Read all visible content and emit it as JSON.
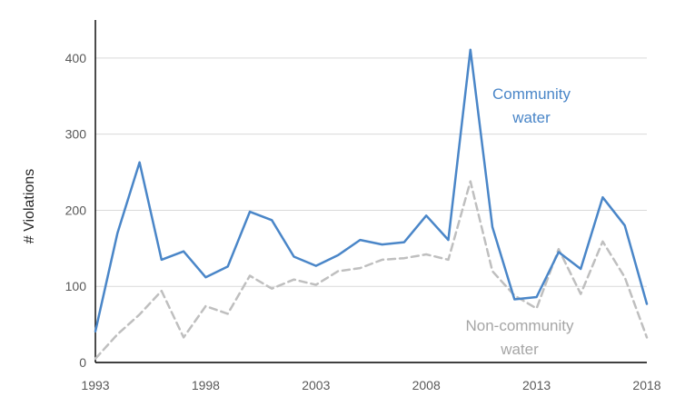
{
  "chart_data": {
    "type": "line",
    "title": "",
    "xlabel": "",
    "ylabel": "# Violations",
    "xlim": [
      1993,
      2018
    ],
    "ylim": [
      0,
      450
    ],
    "x_ticks": [
      "1993",
      "1998",
      "2003",
      "2008",
      "2013",
      "2018"
    ],
    "y_ticks": [
      "0",
      "100",
      "200",
      "300",
      "400"
    ],
    "grid": "horizontal",
    "legend": "none",
    "x": [
      1993,
      1994,
      1995,
      1996,
      1997,
      1998,
      1999,
      2000,
      2001,
      2002,
      2003,
      2004,
      2005,
      2006,
      2007,
      2008,
      2009,
      2010,
      2011,
      2012,
      2013,
      2014,
      2015,
      2016,
      2017,
      2018
    ],
    "series": [
      {
        "name": "Community water",
        "label_lines": [
          "Community",
          "water"
        ],
        "color": "#4a86c8",
        "style": "solid",
        "values": [
          41,
          170,
          263,
          135,
          146,
          112,
          126,
          198,
          187,
          139,
          127,
          141,
          161,
          155,
          158,
          193,
          161,
          411,
          178,
          83,
          86,
          145,
          123,
          217,
          180,
          77
        ]
      },
      {
        "name": "Non-community water",
        "label_lines": [
          "Non-community",
          "water"
        ],
        "color": "#bfbfbf",
        "style": "dashed",
        "values": [
          5,
          37,
          63,
          94,
          33,
          74,
          64,
          114,
          97,
          109,
          102,
          120,
          124,
          135,
          137,
          142,
          135,
          238,
          120,
          88,
          71,
          149,
          90,
          159,
          112,
          33
        ]
      }
    ]
  }
}
